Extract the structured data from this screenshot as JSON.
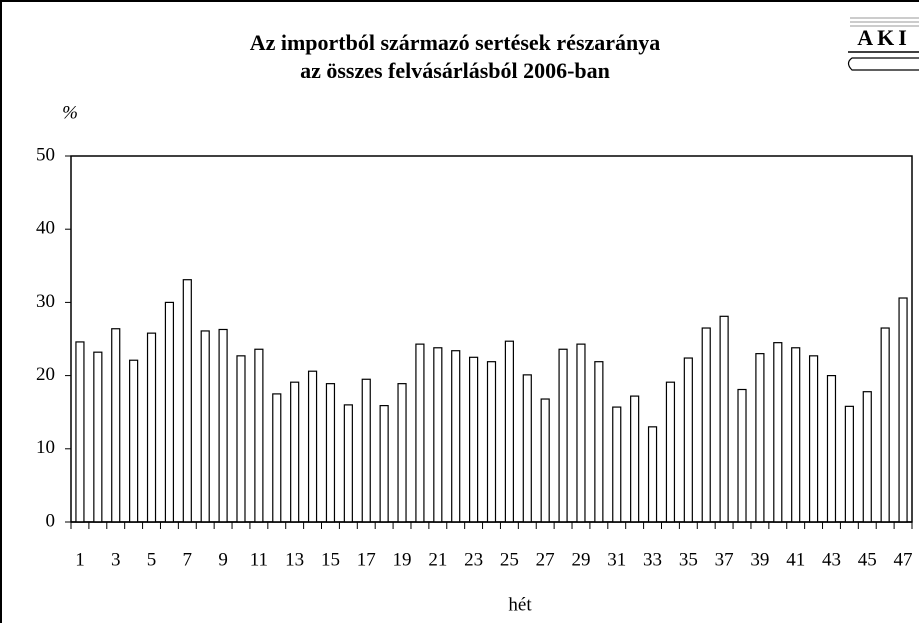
{
  "chart_data": {
    "type": "bar",
    "title": "Az importból származó sertések részaránya",
    "subtitle": "az összes felvásárlásból 2006-ban",
    "logo": "AKI",
    "y_label": "%",
    "x_label": "hét",
    "categories": [
      "1",
      null,
      "3",
      null,
      "5",
      null,
      "7",
      null,
      "9",
      null,
      "11",
      null,
      "13",
      null,
      "15",
      null,
      "17",
      null,
      "19",
      null,
      "21",
      null,
      "23",
      null,
      "25",
      null,
      "27",
      null,
      "29",
      null,
      "31",
      null,
      "33",
      null,
      "35",
      null,
      "37",
      null,
      "39",
      null,
      "41",
      null,
      "43",
      null,
      "45",
      null,
      "47"
    ],
    "values": [
      24.6,
      23.2,
      26.4,
      22.1,
      25.8,
      30.0,
      33.1,
      26.1,
      26.3,
      22.7,
      23.6,
      17.5,
      19.1,
      20.6,
      18.9,
      16.0,
      19.5,
      15.9,
      18.9,
      24.3,
      23.8,
      23.4,
      22.5,
      21.9,
      24.7,
      20.1,
      16.8,
      23.6,
      24.3,
      21.9,
      15.7,
      17.2,
      13.0,
      19.1,
      22.4,
      26.5,
      28.1,
      18.1,
      23.0,
      24.5,
      23.8,
      22.7,
      20.0,
      15.8,
      17.8,
      26.5,
      30.6
    ],
    "color": "#ffffff",
    "ylim": [
      0,
      50
    ],
    "yticks": [
      0,
      10,
      20,
      30,
      40,
      50
    ],
    "grid": false
  }
}
